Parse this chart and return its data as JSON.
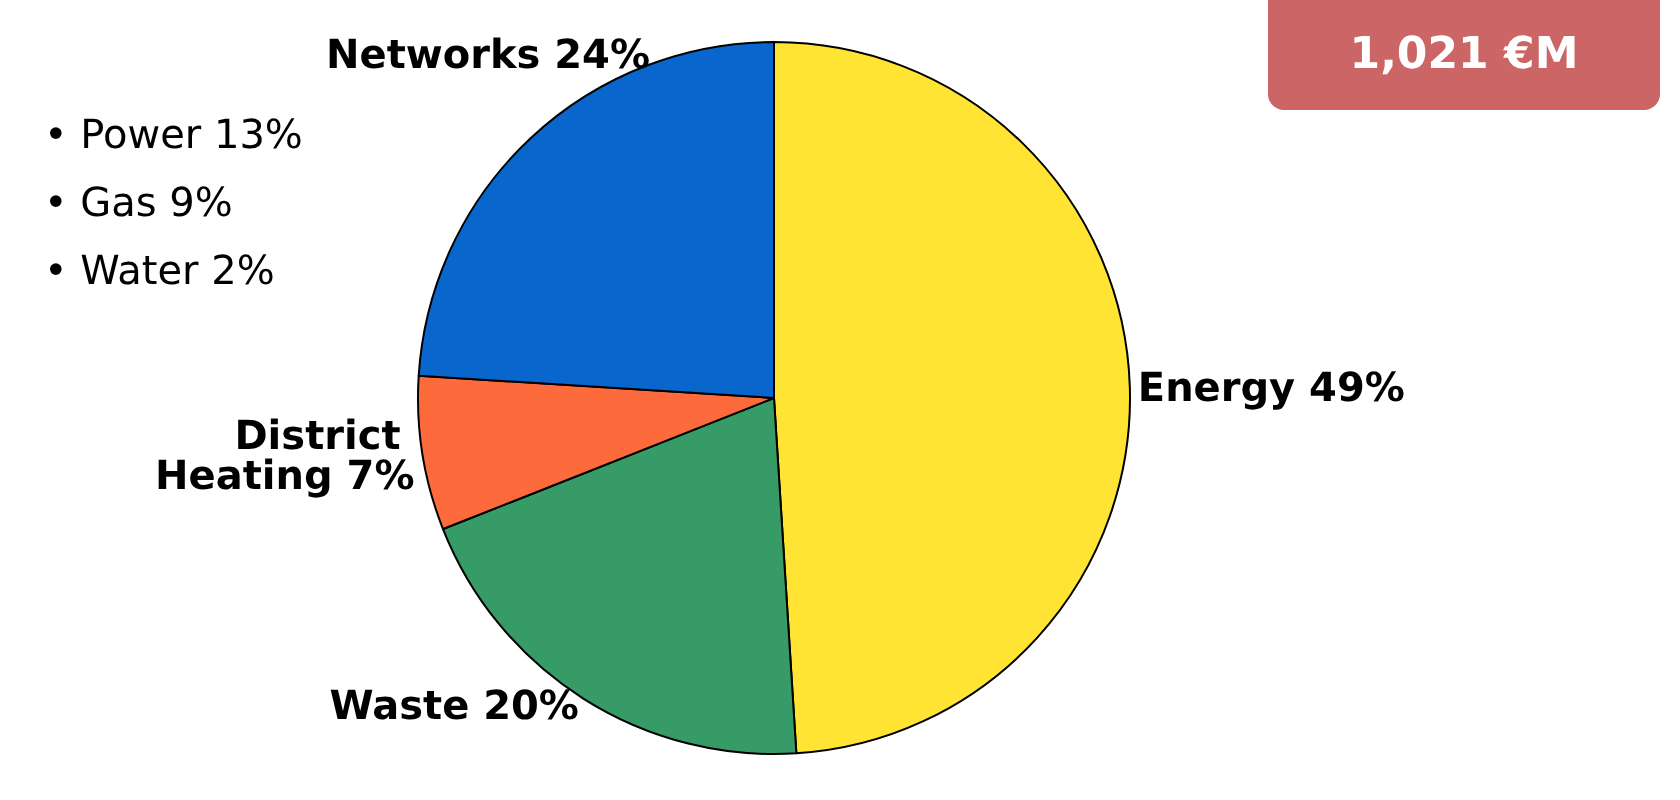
{
  "chart_data": {
    "type": "pie",
    "categories": [
      "Energy",
      "Waste",
      "District Heating",
      "Networks"
    ],
    "values": [
      49,
      20,
      7,
      24
    ],
    "colors": [
      "#ffe433",
      "#379b68",
      "#fd6a3b",
      "#0866cc"
    ],
    "value_labels": [
      "49%",
      "20%",
      "7%",
      "24%"
    ],
    "legend": false,
    "annotations": [
      "• Power 13%",
      "• Gas 9%",
      "• Water 2%",
      "1,021 €M"
    ]
  }
}
